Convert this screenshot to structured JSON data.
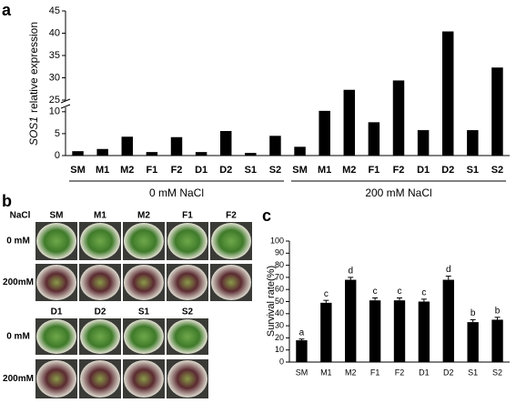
{
  "panels": [
    "a",
    "b",
    "c"
  ],
  "chart_data": [
    {
      "type": "bar",
      "ylabel_gene": "SOS1",
      "ylabel": "relative expression",
      "ylim": [
        0,
        45
      ],
      "ybreak": [
        11,
        25
      ],
      "yticks": [
        0,
        5,
        10,
        25,
        30,
        35,
        40,
        45
      ],
      "color": "#000000",
      "groups": [
        {
          "name": "0 mM NaCl",
          "categories": [
            "SM",
            "M1",
            "M2",
            "F1",
            "F2",
            "D1",
            "D2",
            "S1",
            "S2"
          ],
          "values": [
            1.0,
            1.5,
            4.3,
            0.8,
            4.2,
            0.8,
            5.6,
            0.6,
            4.5
          ]
        },
        {
          "name": "200 mM NaCl",
          "categories": [
            "SM",
            "M1",
            "M2",
            "F1",
            "F2",
            "D1",
            "D2",
            "S1",
            "S2"
          ],
          "values": [
            2.0,
            10.2,
            27.3,
            7.6,
            29.4,
            5.8,
            40.4,
            5.8,
            32.3
          ]
        }
      ]
    },
    {
      "type": "bar",
      "ylabel": "Survival rate(%)",
      "ylim": [
        0,
        100
      ],
      "yticks": [
        0,
        10,
        20,
        30,
        40,
        50,
        60,
        70,
        80,
        90,
        100
      ],
      "color": "#000000",
      "categories": [
        "SM",
        "M1",
        "M2",
        "F1",
        "F2",
        "D1",
        "D2",
        "S1",
        "S2"
      ],
      "values": [
        18,
        49,
        68,
        51,
        51,
        50,
        68,
        33,
        35
      ],
      "errors": [
        1,
        2,
        2,
        2,
        2,
        2,
        3,
        2,
        2
      ],
      "annotations": [
        "a",
        "c",
        "d",
        "c",
        "c",
        "c",
        "d",
        "b",
        "b"
      ]
    }
  ],
  "photo_panel": {
    "header": "NaCl",
    "columns_top": [
      "SM",
      "M1",
      "M2",
      "F1",
      "F2"
    ],
    "columns_bottom": [
      "D1",
      "D2",
      "S1",
      "S2"
    ],
    "rows": [
      "0 mM",
      "200mM",
      "0 mM",
      "200mM"
    ]
  }
}
